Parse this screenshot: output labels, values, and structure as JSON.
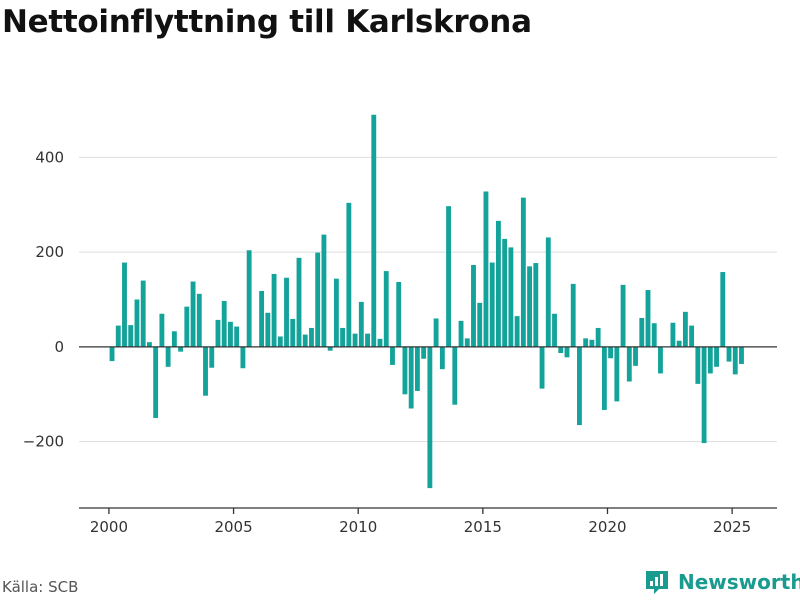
{
  "title": "Nettoinflyttning till Karlskrona",
  "source": "Källa: SCB",
  "brand": {
    "name": "Newsworthy",
    "icon": "newsworthy-logo-icon",
    "color": "#1a9b8f"
  },
  "chart_data": {
    "type": "bar",
    "title": "Nettoinflyttning till Karlskrona",
    "xlabel": "",
    "ylabel": "",
    "bar_color": "#13a39a",
    "ylim": [
      -340,
      500
    ],
    "xlim": [
      1998.8,
      2026.8
    ],
    "grid": true,
    "y_ticks": [
      -200,
      0,
      200,
      400
    ],
    "y_tick_labels": [
      "−200",
      "0",
      "200",
      "400"
    ],
    "x_ticks": [
      2000,
      2005,
      2010,
      2015,
      2020,
      2025
    ],
    "x_tick_labels": [
      "2000",
      "2005",
      "2010",
      "2015",
      "2020",
      "2025"
    ],
    "x": [
      2000.125,
      2000.375,
      2000.625,
      2000.875,
      2001.125,
      2001.375,
      2001.625,
      2001.875,
      2002.125,
      2002.375,
      2002.625,
      2002.875,
      2003.125,
      2003.375,
      2003.625,
      2003.875,
      2004.125,
      2004.375,
      2004.625,
      2004.875,
      2005.125,
      2005.375,
      2005.625,
      2005.875,
      2006.125,
      2006.375,
      2006.625,
      2006.875,
      2007.125,
      2007.375,
      2007.625,
      2007.875,
      2008.125,
      2008.375,
      2008.625,
      2008.875,
      2009.125,
      2009.375,
      2009.625,
      2009.875,
      2010.125,
      2010.375,
      2010.625,
      2010.875,
      2011.125,
      2011.375,
      2011.625,
      2011.875,
      2012.125,
      2012.375,
      2012.625,
      2012.875,
      2013.125,
      2013.375,
      2013.625,
      2013.875,
      2014.125,
      2014.375,
      2014.625,
      2014.875,
      2015.125,
      2015.375,
      2015.625,
      2015.875,
      2016.125,
      2016.375,
      2016.625,
      2016.875,
      2017.125,
      2017.375,
      2017.625,
      2017.875,
      2018.125,
      2018.375,
      2018.625,
      2018.875,
      2019.125,
      2019.375,
      2019.625,
      2019.875,
      2020.125,
      2020.375,
      2020.625,
      2020.875,
      2021.125,
      2021.375,
      2021.625,
      2021.875,
      2022.125,
      2022.375,
      2022.625,
      2022.875,
      2023.125,
      2023.375,
      2023.625,
      2023.875,
      2024.125,
      2024.375,
      2024.625,
      2024.875,
      2025.125,
      2025.375
    ],
    "values": [
      -30,
      45,
      178,
      46,
      100,
      140,
      10,
      -150,
      70,
      -42,
      33,
      -10,
      85,
      138,
      112,
      -103,
      -44,
      57,
      97,
      53,
      43,
      -45,
      204,
      0,
      118,
      72,
      154,
      22,
      146,
      59,
      188,
      26,
      40,
      199,
      237,
      -8,
      144,
      40,
      304,
      28,
      95,
      28,
      490,
      17,
      160,
      -38,
      137,
      -100,
      -130,
      -93,
      -25,
      -298,
      60,
      -47,
      297,
      -122,
      55,
      18,
      173,
      93,
      328,
      178,
      266,
      228,
      210,
      65,
      315,
      170,
      177,
      -88,
      231,
      70,
      -13,
      -22,
      133,
      -165,
      18,
      15,
      40,
      -133,
      -24,
      -115,
      131,
      -73,
      -40,
      61,
      120,
      50,
      -56,
      0,
      51,
      13,
      74,
      45,
      -78,
      -203,
      -56,
      -42,
      158,
      -31,
      -58,
      -36
    ]
  }
}
